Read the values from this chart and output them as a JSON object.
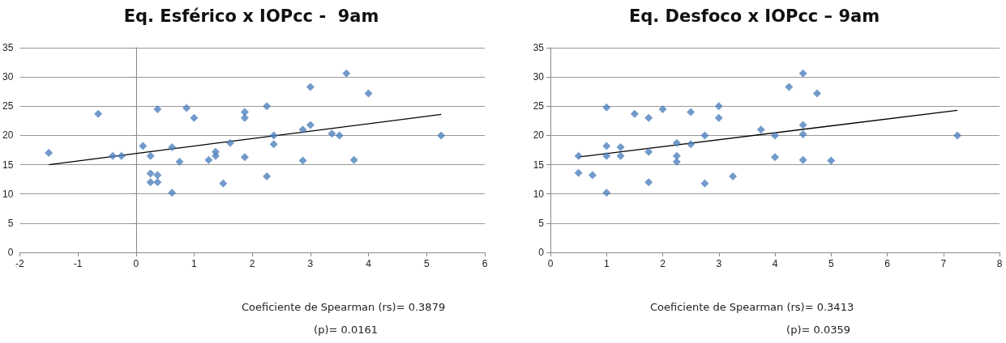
{
  "chart_data": [
    {
      "type": "scatter",
      "title": "Eq. Esférico x IOPcc -  9am",
      "grid": "y",
      "xlim": [
        -2,
        6
      ],
      "xticks": [
        -2,
        -1,
        0,
        1,
        2,
        3,
        4,
        5,
        6
      ],
      "ylim": [
        0,
        35
      ],
      "yticks": [
        0,
        5,
        10,
        15,
        20,
        25,
        30,
        35
      ],
      "series": [
        {
          "color": "#4f81bd",
          "marker": "diamond",
          "x": [
            -1.5,
            -0.65,
            -0.4,
            -0.25,
            0.12,
            0.25,
            0.25,
            0.25,
            0.37,
            0.37,
            0.37,
            0.62,
            0.62,
            0.75,
            0.87,
            1.0,
            1.25,
            1.37,
            1.37,
            1.5,
            1.62,
            1.87,
            1.87,
            1.87,
            2.25,
            2.25,
            2.37,
            2.37,
            2.87,
            2.87,
            3.0,
            3.0,
            3.37,
            3.5,
            3.62,
            3.75,
            4.0,
            5.25
          ],
          "values": [
            17,
            23.7,
            16.5,
            16.5,
            18.2,
            16.5,
            13.5,
            12,
            24.5,
            13.2,
            12,
            18,
            10.2,
            15.5,
            24.7,
            23,
            15.8,
            17.2,
            16.5,
            11.8,
            18.7,
            24,
            23,
            16.3,
            25,
            13,
            20,
            18.5,
            21,
            15.7,
            21.8,
            28.3,
            20.3,
            20,
            30.6,
            15.8,
            27.2,
            20
          ]
        },
        {
          "type": "line",
          "color": "#000000",
          "marker": "none",
          "x": [
            -1.5,
            5.25
          ],
          "values": [
            15,
            23.6
          ]
        }
      ],
      "annotations": [
        "Coeficiente de Spearman (rs)= 0.3879",
        "(p)= 0.0161"
      ]
    },
    {
      "type": "scatter",
      "title": "Eq. Desfoco x IOPcc – 9am",
      "grid": "y",
      "xlim": [
        0,
        8
      ],
      "xticks": [
        0,
        1,
        2,
        3,
        4,
        5,
        6,
        7,
        8
      ],
      "ylim": [
        0,
        35
      ],
      "yticks": [
        0,
        5,
        10,
        15,
        20,
        25,
        30,
        35
      ],
      "series": [
        {
          "color": "#4f81bd",
          "marker": "diamond",
          "x": [
            0.5,
            0.5,
            0.75,
            1,
            1,
            1,
            1,
            1.25,
            1.25,
            1.5,
            1.75,
            1.75,
            1.75,
            2,
            2.25,
            2.25,
            2.25,
            2.5,
            2.5,
            2.75,
            2.75,
            3,
            3,
            3.25,
            3.75,
            4,
            4,
            4.25,
            4.5,
            4.5,
            4.5,
            4.5,
            4.75,
            5,
            7.25
          ],
          "values": [
            16.5,
            13.6,
            13.2,
            24.8,
            18.2,
            16.5,
            10.2,
            18,
            16.5,
            23.7,
            23,
            17.2,
            12,
            24.5,
            18.7,
            16.5,
            15.5,
            24,
            18.5,
            20,
            11.8,
            25,
            23,
            13,
            21,
            20,
            16.3,
            28.3,
            30.6,
            21.8,
            20.2,
            15.8,
            27.2,
            15.7,
            20
          ]
        },
        {
          "type": "line",
          "color": "#000000",
          "marker": "none",
          "x": [
            0.5,
            7.25
          ],
          "values": [
            16.3,
            24.3
          ]
        }
      ],
      "annotations": [
        "Coeficiente de Spearman (rs)= 0.3413",
        "(p)= 0.0359"
      ]
    }
  ]
}
